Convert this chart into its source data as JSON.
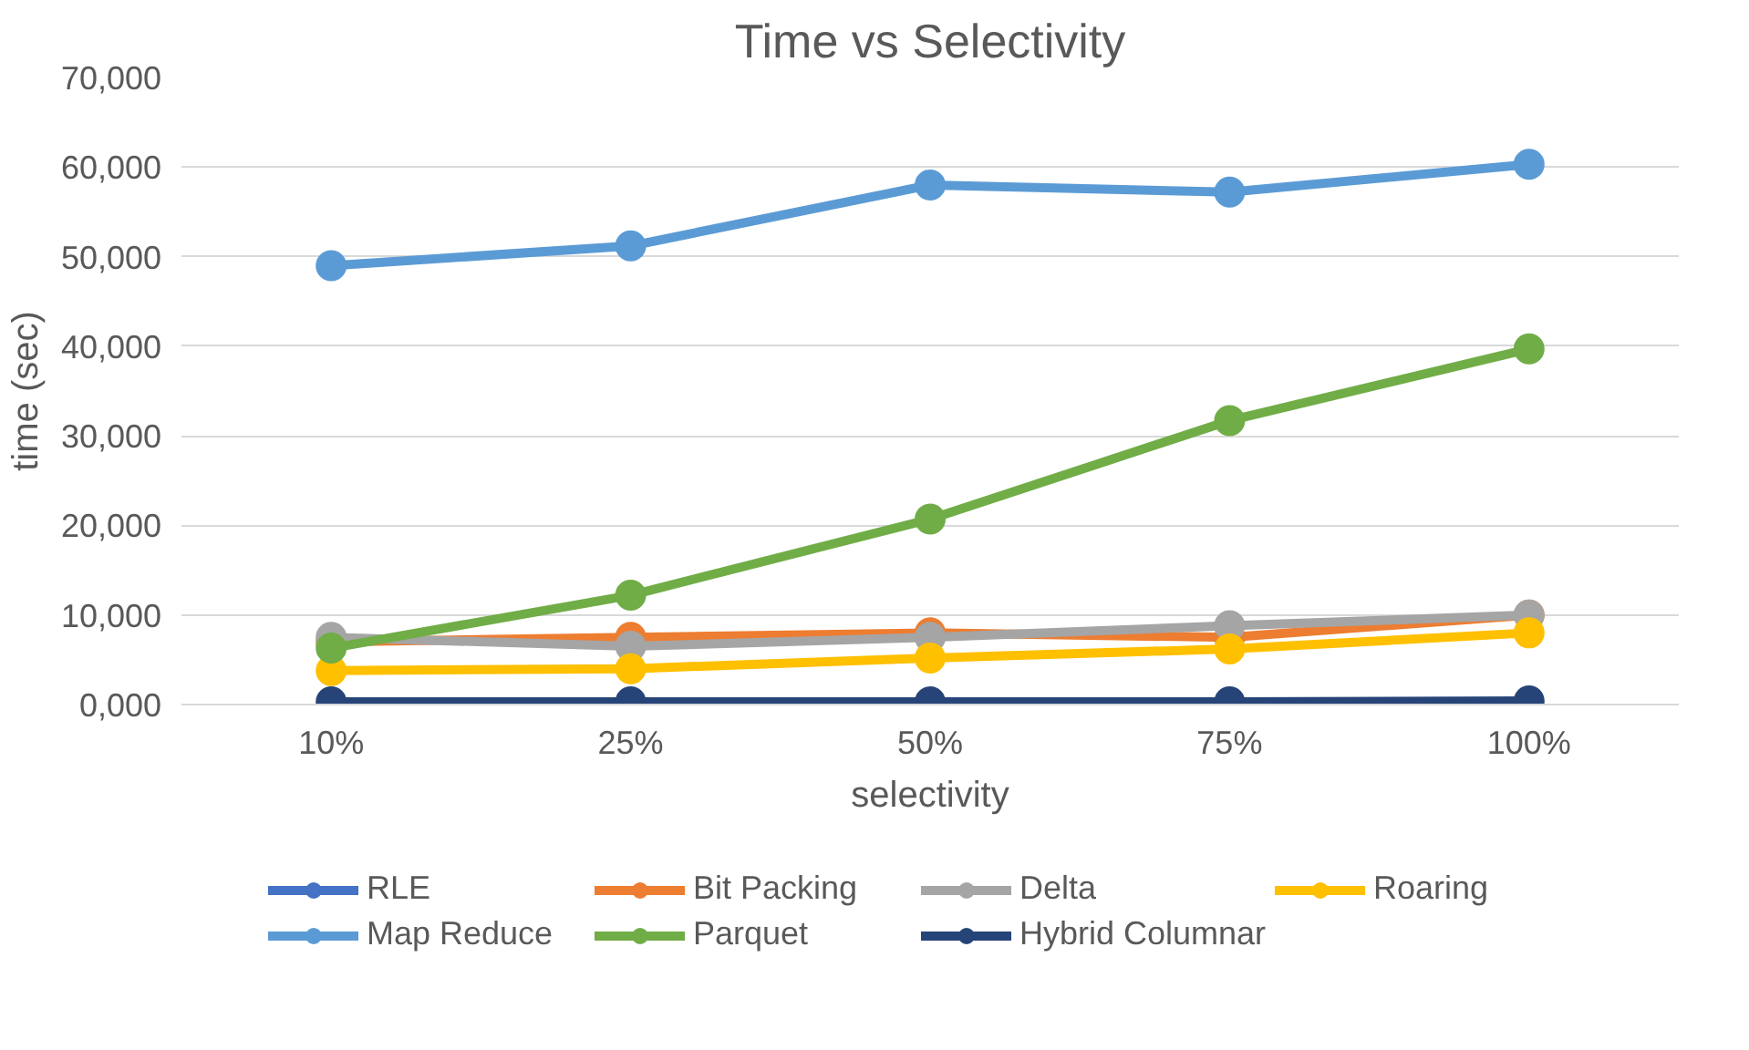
{
  "chart_data": {
    "type": "line",
    "title": "Time vs Selectivity",
    "xlabel": "selectivity",
    "ylabel": "time (sec)",
    "categories": [
      "10%",
      "25%",
      "50%",
      "75%",
      "100%"
    ],
    "series": [
      {
        "name": "RLE",
        "color": "#4472c4",
        "values": [
          null,
          null,
          null,
          null,
          null
        ]
      },
      {
        "name": "Bit Packing",
        "color": "#ed7d31",
        "values": [
          7000,
          7500,
          8000,
          7500,
          10000
        ]
      },
      {
        "name": "Delta",
        "color": "#a5a5a5",
        "values": [
          7500,
          6500,
          7500,
          8800,
          10000
        ]
      },
      {
        "name": "Roaring",
        "color": "#ffc000",
        "values": [
          3800,
          4000,
          5200,
          6200,
          8000
        ]
      },
      {
        "name": "Map Reduce",
        "color": "#5b9bd5",
        "values": [
          49000,
          51200,
          58000,
          57200,
          60300
        ]
      },
      {
        "name": "Parquet",
        "color": "#70ad47",
        "values": [
          6300,
          12200,
          20700,
          31700,
          39700
        ]
      },
      {
        "name": "Hybrid Columnar",
        "color": "#264478",
        "values": [
          300,
          300,
          300,
          300,
          400
        ]
      }
    ],
    "ylim": [
      0,
      70000
    ],
    "yticks": [
      {
        "value": 0,
        "label": "0,000"
      },
      {
        "value": 10000,
        "label": "10,000"
      },
      {
        "value": 20000,
        "label": "20,000"
      },
      {
        "value": 30000,
        "label": "30,000"
      },
      {
        "value": 40000,
        "label": "40,000"
      },
      {
        "value": 50000,
        "label": "50,000"
      },
      {
        "value": 60000,
        "label": "60,000"
      },
      {
        "value": 70000,
        "label": "70,000"
      }
    ],
    "grid": "y",
    "legend": "bottom",
    "marker": "circle",
    "line_style": "solid"
  }
}
